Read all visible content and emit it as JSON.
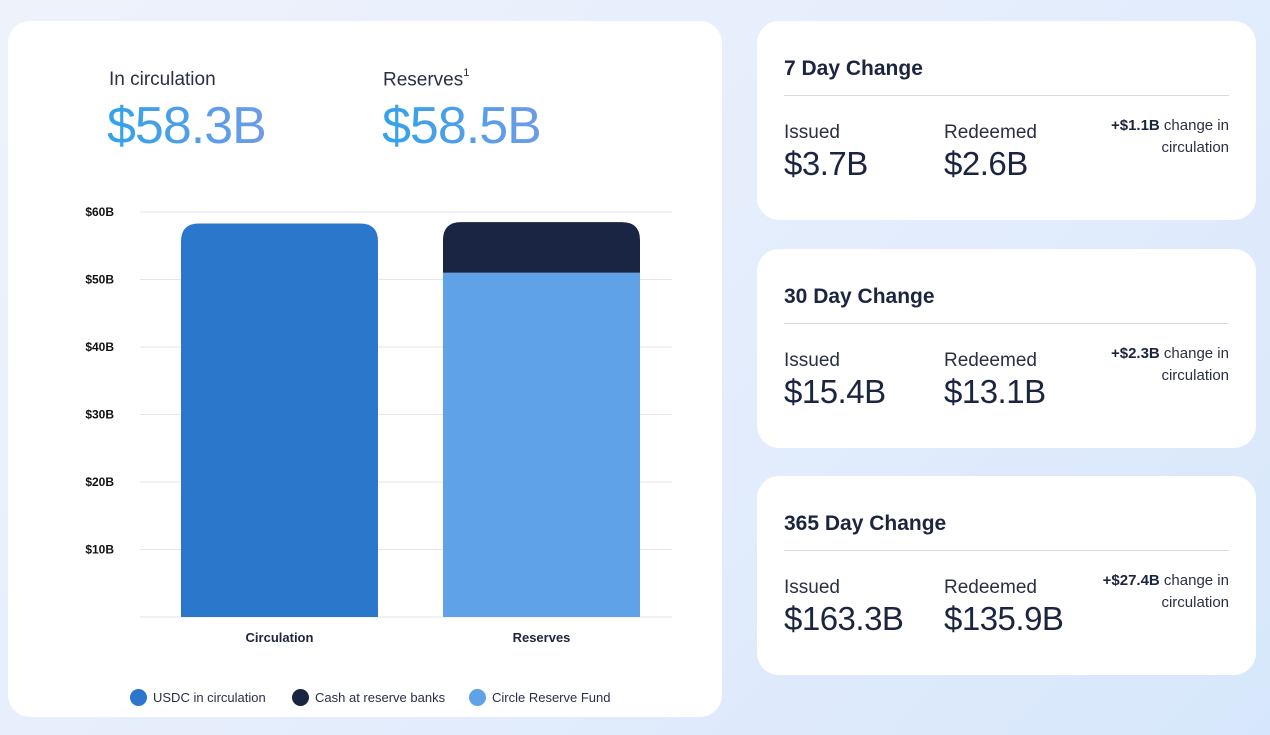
{
  "stats": {
    "circulation_label": "In circulation",
    "circulation_value": "$58.3B",
    "reserves_label": "Reserves",
    "reserves_footnote": "1",
    "reserves_value": "$58.5B"
  },
  "chart_data": {
    "type": "bar",
    "stacked": true,
    "categories": [
      "Circulation",
      "Reserves"
    ],
    "series": [
      {
        "name": "USDC in circulation",
        "color": "#2b77cb",
        "values": [
          58.3,
          0
        ]
      },
      {
        "name": "Cash at reserve banks",
        "color": "#1a2544",
        "values": [
          0,
          7.5
        ]
      },
      {
        "name": "Circle Reserve Fund",
        "color": "#5fa2e8",
        "values": [
          0,
          51.0
        ]
      }
    ],
    "y_ticks": [
      10,
      20,
      30,
      40,
      50,
      60
    ],
    "y_tick_labels": [
      "$10B",
      "$20B",
      "$30B",
      "$40B",
      "$50B",
      "$60B"
    ],
    "ylim": [
      0,
      60
    ],
    "grid": true,
    "legend_position": "bottom"
  },
  "changes": [
    {
      "title": "7 Day Change",
      "issued_label": "Issued",
      "issued_value": "$3.7B",
      "redeemed_label": "Redeemed",
      "redeemed_value": "$2.6B",
      "net_change": "+$1.1B",
      "net_suffix": " change in circulation"
    },
    {
      "title": "30 Day Change",
      "issued_label": "Issued",
      "issued_value": "$15.4B",
      "redeemed_label": "Redeemed",
      "redeemed_value": "$13.1B",
      "net_change": "+$2.3B",
      "net_suffix": " change in circulation"
    },
    {
      "title": "365 Day Change",
      "issued_label": "Issued",
      "issued_value": "$163.3B",
      "redeemed_label": "Redeemed",
      "redeemed_value": "$135.9B",
      "net_change": "+$27.4B",
      "net_suffix": " change in circulation"
    }
  ]
}
